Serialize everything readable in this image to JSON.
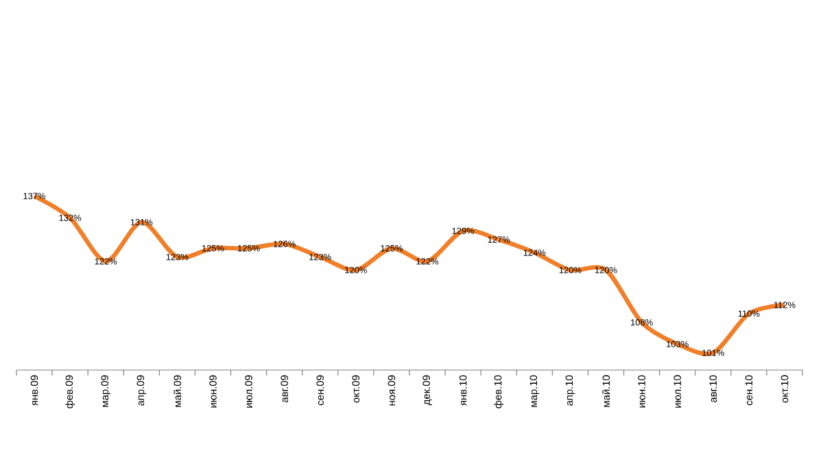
{
  "chart_data": {
    "type": "line",
    "categories": [
      "янв.09",
      "фев.09",
      "мар.09",
      "апр.09",
      "май.09",
      "июн.09",
      "июл.09",
      "авг.09",
      "сен.09",
      "окт.09",
      "ноя.09",
      "дек.09",
      "янв.10",
      "фев.10",
      "мар.10",
      "апр.10",
      "май.10",
      "июн.10",
      "июл.10",
      "авг.10",
      "сен.10",
      "окт.10"
    ],
    "series": [
      {
        "color": "#f07f2a",
        "values": [
          137,
          132,
          122,
          131,
          123,
          125,
          125,
          126,
          123,
          120,
          125,
          122,
          129,
          127,
          124,
          120,
          120,
          108,
          103,
          101,
          110,
          112
        ],
        "value_labels": [
          "137%",
          "132%",
          "122%",
          "131%",
          "123%",
          "125%",
          "125%",
          "126%",
          "123%",
          "120%",
          "125%",
          "122%",
          "129%",
          "127%",
          "124%",
          "120%",
          "120%",
          "108%",
          "103%",
          "101%",
          "110%",
          "112%"
        ]
      }
    ],
    "grid": false,
    "legend": false,
    "marker": "none",
    "line_style": "solid"
  }
}
